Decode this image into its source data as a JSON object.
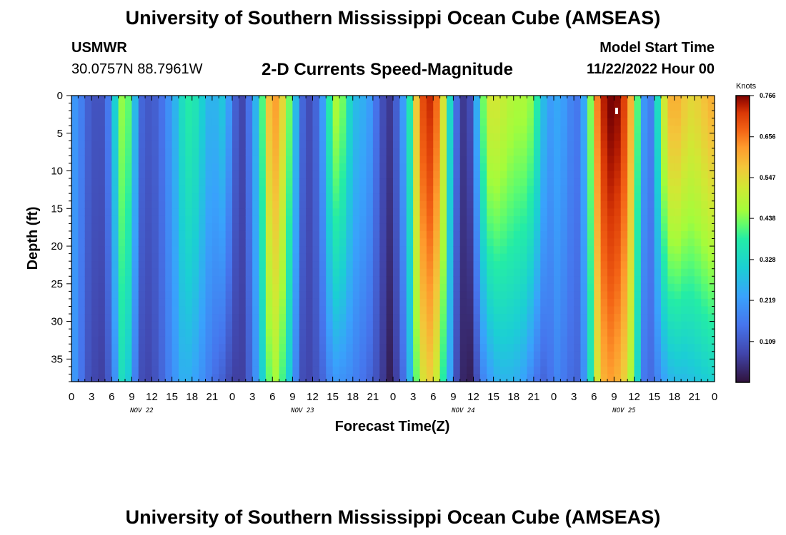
{
  "header": {
    "title": "University of Southern Mississippi Ocean Cube (AMSEAS)",
    "station": "USMWR",
    "coords": "30.0757N  88.7961W",
    "subtitle": "2-D Currents Speed-Magnitude",
    "start_label": "Model Start Time",
    "start_value": "11/22/2022 Hour 00"
  },
  "footer": {
    "title": "University of Southern Mississippi Ocean Cube (AMSEAS)"
  },
  "chart_data": {
    "type": "heatmap",
    "title": "2-D Currents Speed-Magnitude",
    "xlabel": "Forecast Time(Z)",
    "ylabel": "Depth (ft)",
    "x_ticks": [
      "0",
      "3",
      "6",
      "9",
      "12",
      "15",
      "18",
      "21",
      "0",
      "3",
      "6",
      "9",
      "12",
      "15",
      "18",
      "21",
      "0",
      "3",
      "6",
      "9",
      "12",
      "15",
      "18",
      "21",
      "0",
      "3",
      "6",
      "9",
      "12",
      "15",
      "18",
      "21",
      "0"
    ],
    "x_range_hours": [
      0,
      96
    ],
    "day_labels": [
      {
        "label": "NOV 22",
        "hour": 10.5
      },
      {
        "label": "NOV 23",
        "hour": 34.5
      },
      {
        "label": "NOV 24",
        "hour": 58.5
      },
      {
        "label": "NOV 25",
        "hour": 82.5
      }
    ],
    "y_ticks": [
      "0",
      "5",
      "10",
      "15",
      "20",
      "25",
      "30",
      "35"
    ],
    "y_range_ft": [
      0,
      38
    ],
    "colorbar": {
      "unit": "Knots",
      "ticks": [
        "0.766",
        "0.656",
        "0.547",
        "0.438",
        "0.328",
        "0.219",
        "0.109"
      ],
      "min": 0.0,
      "max": 0.766
    },
    "columns": [
      {
        "hour": 0.5,
        "top": 0.21,
        "bottom": 0.21
      },
      {
        "hour": 1.5,
        "top": 0.17,
        "bottom": 0.15
      },
      {
        "hour": 2.5,
        "top": 0.12,
        "bottom": 0.1
      },
      {
        "hour": 3.5,
        "top": 0.1,
        "bottom": 0.08
      },
      {
        "hour": 4.5,
        "top": 0.1,
        "bottom": 0.07
      },
      {
        "hour": 5.5,
        "top": 0.16,
        "bottom": 0.11
      },
      {
        "hour": 6.5,
        "top": 0.31,
        "bottom": 0.2
      },
      {
        "hour": 7.5,
        "top": 0.45,
        "bottom": 0.34
      },
      {
        "hour": 8.5,
        "top": 0.42,
        "bottom": 0.3
      },
      {
        "hour": 9.5,
        "top": 0.27,
        "bottom": 0.17
      },
      {
        "hour": 10.5,
        "top": 0.13,
        "bottom": 0.09
      },
      {
        "hour": 11.5,
        "top": 0.11,
        "bottom": 0.08
      },
      {
        "hour": 12.5,
        "top": 0.12,
        "bottom": 0.1
      },
      {
        "hour": 13.5,
        "top": 0.15,
        "bottom": 0.13
      },
      {
        "hour": 14.5,
        "top": 0.2,
        "bottom": 0.17
      },
      {
        "hour": 15.5,
        "top": 0.26,
        "bottom": 0.21
      },
      {
        "hour": 16.5,
        "top": 0.34,
        "bottom": 0.25
      },
      {
        "hour": 17.5,
        "top": 0.38,
        "bottom": 0.25
      },
      {
        "hour": 18.5,
        "top": 0.36,
        "bottom": 0.23
      },
      {
        "hour": 19.5,
        "top": 0.31,
        "bottom": 0.2
      },
      {
        "hour": 20.5,
        "top": 0.26,
        "bottom": 0.17
      },
      {
        "hour": 21.5,
        "top": 0.26,
        "bottom": 0.14
      },
      {
        "hour": 22.5,
        "top": 0.29,
        "bottom": 0.12
      },
      {
        "hour": 23.5,
        "top": 0.22,
        "bottom": 0.09
      },
      {
        "hour": 24.5,
        "top": 0.12,
        "bottom": 0.07
      },
      {
        "hour": 25.5,
        "top": 0.08,
        "bottom": 0.07
      },
      {
        "hour": 26.5,
        "top": 0.15,
        "bottom": 0.12
      },
      {
        "hour": 27.5,
        "top": 0.26,
        "bottom": 0.2
      },
      {
        "hour": 28.5,
        "top": 0.41,
        "bottom": 0.31
      },
      {
        "hour": 29.5,
        "top": 0.58,
        "bottom": 0.42
      },
      {
        "hour": 30.5,
        "top": 0.62,
        "bottom": 0.46
      },
      {
        "hour": 31.5,
        "top": 0.55,
        "bottom": 0.4
      },
      {
        "hour": 32.5,
        "top": 0.43,
        "bottom": 0.3
      },
      {
        "hour": 33.5,
        "top": 0.27,
        "bottom": 0.18
      },
      {
        "hour": 34.5,
        "top": 0.13,
        "bottom": 0.09
      },
      {
        "hour": 35.5,
        "top": 0.09,
        "bottom": 0.08
      },
      {
        "hour": 36.5,
        "top": 0.13,
        "bottom": 0.1
      },
      {
        "hour": 37.5,
        "top": 0.22,
        "bottom": 0.13
      },
      {
        "hour": 38.5,
        "top": 0.38,
        "bottom": 0.18
      },
      {
        "hour": 39.5,
        "top": 0.47,
        "bottom": 0.21
      },
      {
        "hour": 40.5,
        "top": 0.43,
        "bottom": 0.2
      },
      {
        "hour": 41.5,
        "top": 0.33,
        "bottom": 0.19
      },
      {
        "hour": 42.5,
        "top": 0.27,
        "bottom": 0.17
      },
      {
        "hour": 43.5,
        "top": 0.25,
        "bottom": 0.15
      },
      {
        "hour": 44.5,
        "top": 0.22,
        "bottom": 0.13
      },
      {
        "hour": 45.5,
        "top": 0.15,
        "bottom": 0.1
      },
      {
        "hour": 46.5,
        "top": 0.09,
        "bottom": 0.06
      },
      {
        "hour": 47.5,
        "top": 0.06,
        "bottom": 0.02
      },
      {
        "hour": 48.5,
        "top": 0.12,
        "bottom": 0.07
      },
      {
        "hour": 49.5,
        "top": 0.22,
        "bottom": 0.14
      },
      {
        "hour": 50.5,
        "top": 0.37,
        "bottom": 0.26
      },
      {
        "hour": 51.5,
        "top": 0.57,
        "bottom": 0.42
      },
      {
        "hour": 52.5,
        "top": 0.7,
        "bottom": 0.53
      },
      {
        "hour": 53.5,
        "top": 0.73,
        "bottom": 0.56
      },
      {
        "hour": 54.5,
        "top": 0.67,
        "bottom": 0.51
      },
      {
        "hour": 55.5,
        "top": 0.53,
        "bottom": 0.38
      },
      {
        "hour": 56.5,
        "top": 0.33,
        "bottom": 0.23
      },
      {
        "hour": 57.5,
        "top": 0.14,
        "bottom": 0.09
      },
      {
        "hour": 58.5,
        "top": 0.06,
        "bottom": 0.03
      },
      {
        "hour": 59.5,
        "top": 0.09,
        "bottom": 0.02
      },
      {
        "hour": 60.5,
        "top": 0.25,
        "bottom": 0.09
      },
      {
        "hour": 61.5,
        "top": 0.43,
        "bottom": 0.18
      },
      {
        "hour": 62.5,
        "top": 0.52,
        "bottom": 0.22
      },
      {
        "hour": 63.5,
        "top": 0.52,
        "bottom": 0.25
      },
      {
        "hour": 64.5,
        "top": 0.5,
        "bottom": 0.26
      },
      {
        "hour": 65.5,
        "top": 0.48,
        "bottom": 0.26
      },
      {
        "hour": 66.5,
        "top": 0.47,
        "bottom": 0.25
      },
      {
        "hour": 67.5,
        "top": 0.47,
        "bottom": 0.23
      },
      {
        "hour": 68.5,
        "top": 0.45,
        "bottom": 0.19
      },
      {
        "hour": 69.5,
        "top": 0.38,
        "bottom": 0.15
      },
      {
        "hour": 70.5,
        "top": 0.27,
        "bottom": 0.13
      },
      {
        "hour": 71.5,
        "top": 0.22,
        "bottom": 0.15
      },
      {
        "hour": 72.5,
        "top": 0.24,
        "bottom": 0.18
      },
      {
        "hour": 73.5,
        "top": 0.22,
        "bottom": 0.16
      },
      {
        "hour": 74.5,
        "top": 0.18,
        "bottom": 0.14
      },
      {
        "hour": 75.5,
        "top": 0.16,
        "bottom": 0.13
      },
      {
        "hour": 76.5,
        "top": 0.24,
        "bottom": 0.2
      },
      {
        "hour": 77.5,
        "top": 0.44,
        "bottom": 0.35
      },
      {
        "hour": 78.5,
        "top": 0.65,
        "bottom": 0.52
      },
      {
        "hour": 79.5,
        "top": 0.74,
        "bottom": 0.6
      },
      {
        "hour": 80.5,
        "top": 0.77,
        "bottom": 0.62
      },
      {
        "hour": 81.5,
        "top": 0.76,
        "bottom": 0.6
      },
      {
        "hour": 82.5,
        "top": 0.71,
        "bottom": 0.56
      },
      {
        "hour": 83.5,
        "top": 0.6,
        "bottom": 0.47
      },
      {
        "hour": 84.5,
        "top": 0.41,
        "bottom": 0.32
      },
      {
        "hour": 85.5,
        "top": 0.21,
        "bottom": 0.16
      },
      {
        "hour": 86.5,
        "top": 0.17,
        "bottom": 0.14
      },
      {
        "hour": 87.5,
        "top": 0.34,
        "bottom": 0.18
      },
      {
        "hour": 88.5,
        "top": 0.52,
        "bottom": 0.23
      },
      {
        "hour": 89.5,
        "top": 0.6,
        "bottom": 0.26
      },
      {
        "hour": 90.5,
        "top": 0.6,
        "bottom": 0.27
      },
      {
        "hour": 91.5,
        "top": 0.57,
        "bottom": 0.27
      },
      {
        "hour": 92.5,
        "top": 0.55,
        "bottom": 0.28
      },
      {
        "hour": 93.5,
        "top": 0.56,
        "bottom": 0.29
      },
      {
        "hour": 94.5,
        "top": 0.58,
        "bottom": 0.3
      },
      {
        "hour": 95.5,
        "top": 0.6,
        "bottom": 0.31
      }
    ]
  }
}
